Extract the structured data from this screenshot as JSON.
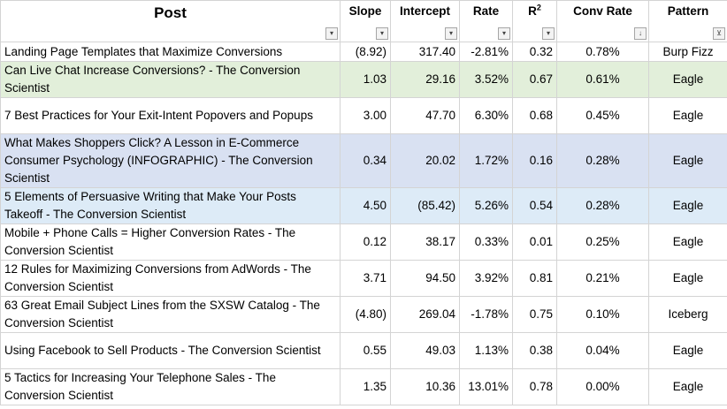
{
  "headers": {
    "post": "Post",
    "slope": "Slope",
    "intercept": "Intercept",
    "rate": "Rate",
    "r2_base": "R",
    "r2_sup": "2",
    "conv_rate": "Conv Rate",
    "pattern": "Pattern"
  },
  "filter_icons": {
    "dropdown": "▾",
    "sorted_desc": "↓",
    "filtered": "⊻"
  },
  "colors": {
    "green_row": "#e2efda",
    "white_row": "#ffffff",
    "purple_row": "#d9e1f2",
    "blue_row": "#ddebf7",
    "gridline": "#d4d4d4"
  },
  "rows": [
    {
      "post": "Landing Page Templates that Maximize Conversions",
      "slope": "(8.92)",
      "intercept": "317.40",
      "rate": "-2.81%",
      "r2": "0.32",
      "conv_rate": "0.78%",
      "pattern": "Burp Fizz",
      "bg": "#ffffff"
    },
    {
      "post": "Can Live Chat Increase Conversions? - The Conversion Scientist",
      "slope": "1.03",
      "intercept": "29.16",
      "rate": "3.52%",
      "r2": "0.67",
      "conv_rate": "0.61%",
      "pattern": "Eagle",
      "bg": "#e2efda"
    },
    {
      "post": "7 Best Practices for Your Exit-Intent Popovers and Popups",
      "slope": "3.00",
      "intercept": "47.70",
      "rate": "6.30%",
      "r2": "0.68",
      "conv_rate": "0.45%",
      "pattern": "Eagle",
      "bg": "#ffffff"
    },
    {
      "post": "What Makes Shoppers Click? A Lesson in E-Commerce Consumer Psychology (INFOGRAPHIC) - The Conversion Scientist",
      "slope": "0.34",
      "intercept": "20.02",
      "rate": "1.72%",
      "r2": "0.16",
      "conv_rate": "0.28%",
      "pattern": "Eagle",
      "bg": "#d9e1f2"
    },
    {
      "post": "5 Elements of Persuasive Writing that Make Your Posts Takeoff - The Conversion Scientist",
      "slope": "4.50",
      "intercept": "(85.42)",
      "rate": "5.26%",
      "r2": "0.54",
      "conv_rate": "0.28%",
      "pattern": "Eagle",
      "bg": "#ddebf7"
    },
    {
      "post": "Mobile + Phone Calls = Higher Conversion Rates - The Conversion Scientist",
      "slope": "0.12",
      "intercept": "38.17",
      "rate": "0.33%",
      "r2": "0.01",
      "conv_rate": "0.25%",
      "pattern": "Eagle",
      "bg": "#ffffff"
    },
    {
      "post": "12 Rules for Maximizing Conversions from AdWords - The Conversion Scientist",
      "slope": "3.71",
      "intercept": "94.50",
      "rate": "3.92%",
      "r2": "0.81",
      "conv_rate": "0.21%",
      "pattern": "Eagle",
      "bg": "#ffffff"
    },
    {
      "post": "63 Great Email Subject Lines from the SXSW Catalog - The Conversion Scientist",
      "slope": "(4.80)",
      "intercept": "269.04",
      "rate": "-1.78%",
      "r2": "0.75",
      "conv_rate": "0.10%",
      "pattern": "Iceberg",
      "bg": "#ffffff"
    },
    {
      "post": "Using Facebook to Sell Products - The Conversion Scientist",
      "slope": "0.55",
      "intercept": "49.03",
      "rate": "1.13%",
      "r2": "0.38",
      "conv_rate": "0.04%",
      "pattern": "Eagle",
      "bg": "#ffffff"
    },
    {
      "post": "5 Tactics for Increasing Your Telephone Sales - The Conversion Scientist",
      "slope": "1.35",
      "intercept": "10.36",
      "rate": "13.01%",
      "r2": "0.78",
      "conv_rate": "0.00%",
      "pattern": "Eagle",
      "bg": "#ffffff"
    }
  ]
}
